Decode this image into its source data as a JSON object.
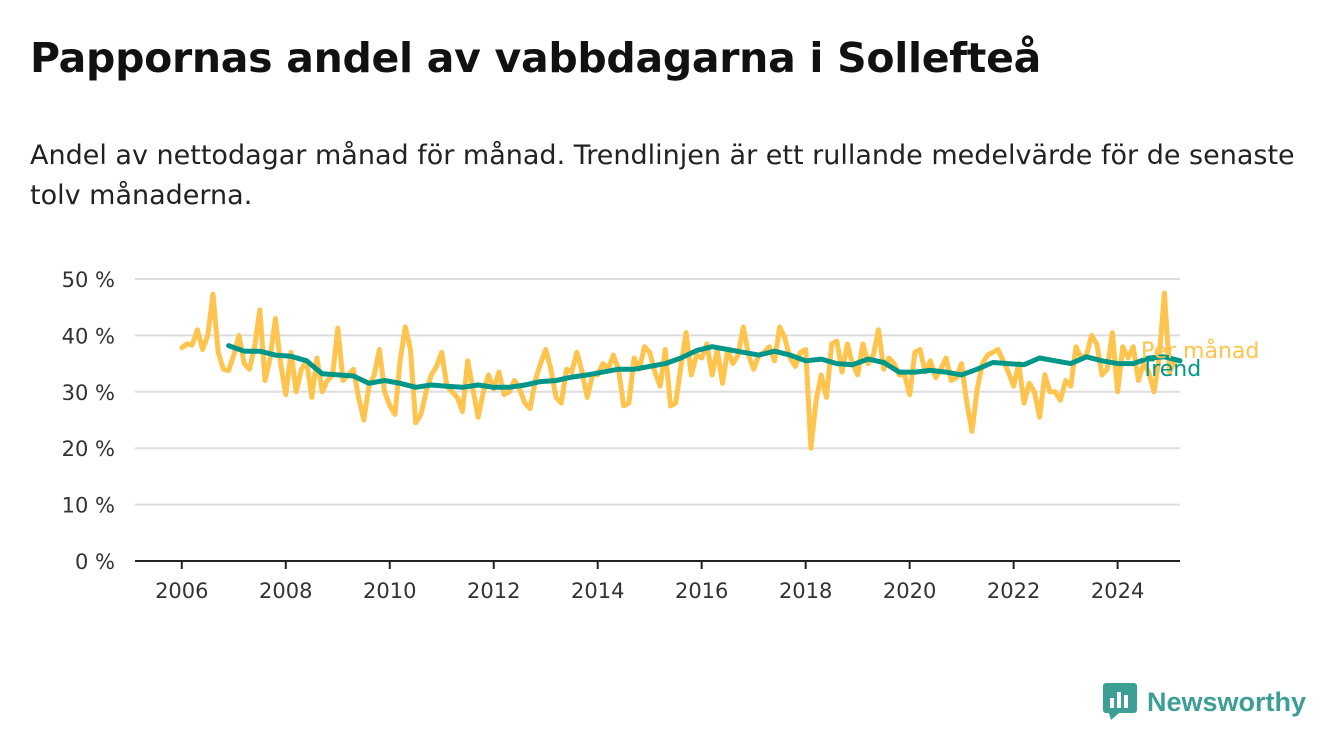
{
  "header": {
    "title": "Pappornas andel av vabbdagarna i Sollefteå",
    "subtitle": "Andel av nettodagar månad för månad. Trendlinjen är ett rullande medelvärde för de senaste tolv månaderna."
  },
  "brand": {
    "name": "Newsworthy",
    "icon": "newsworthy-logo-icon"
  },
  "colors": {
    "per_month": "#ffc44d",
    "trend": "#009688",
    "grid": "#dddddd",
    "axis": "#222222",
    "brand": "#3d9e96"
  },
  "chart_data": {
    "type": "line",
    "title": "Pappornas andel av vabbdagarna i Sollefteå",
    "ylim": [
      0,
      50
    ],
    "y_ticks": [
      0,
      10,
      20,
      30,
      40,
      50
    ],
    "y_tick_labels": [
      "0 %",
      "10 %",
      "20 %",
      "30 %",
      "40 %",
      "50 %"
    ],
    "x_ticks": [
      2006,
      2008,
      2010,
      2012,
      2014,
      2016,
      2018,
      2020,
      2022,
      2024
    ],
    "x_tick_labels": [
      "2006",
      "2008",
      "2010",
      "2012",
      "2014",
      "2016",
      "2018",
      "2020",
      "2022",
      "2024"
    ],
    "xlim": [
      2005.1,
      2025.2
    ],
    "grid": true,
    "legend": "direct labels at line ends (right)",
    "series": [
      {
        "name": "Per månad",
        "points": [
          [
            2006.0,
            37.8
          ],
          [
            2006.1,
            38.5
          ],
          [
            2006.2,
            38.3
          ],
          [
            2006.3,
            41.0
          ],
          [
            2006.4,
            37.5
          ],
          [
            2006.5,
            40.0
          ],
          [
            2006.6,
            47.3
          ],
          [
            2006.7,
            37.0
          ],
          [
            2006.8,
            34.0
          ],
          [
            2006.9,
            33.8
          ],
          [
            2007.0,
            36.5
          ],
          [
            2007.1,
            40.0
          ],
          [
            2007.2,
            35.0
          ],
          [
            2007.3,
            34.0
          ],
          [
            2007.4,
            38.0
          ],
          [
            2007.5,
            44.5
          ],
          [
            2007.6,
            32.0
          ],
          [
            2007.7,
            36.0
          ],
          [
            2007.8,
            43.0
          ],
          [
            2007.9,
            35.0
          ],
          [
            2008.0,
            29.5
          ],
          [
            2008.1,
            37.0
          ],
          [
            2008.2,
            30.0
          ],
          [
            2008.3,
            34.0
          ],
          [
            2008.4,
            35.5
          ],
          [
            2008.5,
            29.0
          ],
          [
            2008.6,
            36.0
          ],
          [
            2008.7,
            30.0
          ],
          [
            2008.8,
            32.0
          ],
          [
            2008.9,
            33.0
          ],
          [
            2009.0,
            41.3
          ],
          [
            2009.1,
            32.0
          ],
          [
            2009.2,
            33.0
          ],
          [
            2009.3,
            34.0
          ],
          [
            2009.4,
            29.0
          ],
          [
            2009.5,
            25.0
          ],
          [
            2009.6,
            31.0
          ],
          [
            2009.7,
            33.0
          ],
          [
            2009.8,
            37.5
          ],
          [
            2009.9,
            30.0
          ],
          [
            2010.0,
            27.5
          ],
          [
            2010.1,
            26.0
          ],
          [
            2010.2,
            35.5
          ],
          [
            2010.3,
            41.5
          ],
          [
            2010.4,
            37.5
          ],
          [
            2010.5,
            24.5
          ],
          [
            2010.6,
            26.0
          ],
          [
            2010.7,
            30.0
          ],
          [
            2010.8,
            33.0
          ],
          [
            2010.9,
            34.5
          ],
          [
            2011.0,
            37.0
          ],
          [
            2011.1,
            31.0
          ],
          [
            2011.2,
            30.0
          ],
          [
            2011.3,
            29.0
          ],
          [
            2011.4,
            26.5
          ],
          [
            2011.5,
            35.5
          ],
          [
            2011.6,
            30.5
          ],
          [
            2011.7,
            25.5
          ],
          [
            2011.8,
            30.0
          ],
          [
            2011.9,
            33.0
          ],
          [
            2012.0,
            30.5
          ],
          [
            2012.1,
            33.5
          ],
          [
            2012.2,
            29.5
          ],
          [
            2012.3,
            30.0
          ],
          [
            2012.4,
            32.0
          ],
          [
            2012.5,
            30.5
          ],
          [
            2012.6,
            28.0
          ],
          [
            2012.7,
            27.0
          ],
          [
            2012.8,
            32.0
          ],
          [
            2012.9,
            35.0
          ],
          [
            2013.0,
            37.5
          ],
          [
            2013.1,
            34.0
          ],
          [
            2013.2,
            29.0
          ],
          [
            2013.3,
            28.0
          ],
          [
            2013.4,
            34.0
          ],
          [
            2013.5,
            33.5
          ],
          [
            2013.6,
            37.0
          ],
          [
            2013.7,
            33.5
          ],
          [
            2013.8,
            29.0
          ],
          [
            2013.9,
            33.0
          ],
          [
            2014.0,
            33.0
          ],
          [
            2014.1,
            35.0
          ],
          [
            2014.2,
            34.0
          ],
          [
            2014.3,
            36.5
          ],
          [
            2014.4,
            34.0
          ],
          [
            2014.5,
            27.5
          ],
          [
            2014.6,
            28.0
          ],
          [
            2014.7,
            36.0
          ],
          [
            2014.8,
            34.0
          ],
          [
            2014.9,
            38.0
          ],
          [
            2015.0,
            37.0
          ],
          [
            2015.1,
            33.5
          ],
          [
            2015.2,
            31.0
          ],
          [
            2015.3,
            37.5
          ],
          [
            2015.4,
            27.5
          ],
          [
            2015.5,
            28.0
          ],
          [
            2015.6,
            34.5
          ],
          [
            2015.7,
            40.5
          ],
          [
            2015.8,
            33.0
          ],
          [
            2015.9,
            36.5
          ],
          [
            2016.0,
            36.0
          ],
          [
            2016.1,
            38.5
          ],
          [
            2016.2,
            33.0
          ],
          [
            2016.3,
            37.5
          ],
          [
            2016.4,
            31.5
          ],
          [
            2016.5,
            37.5
          ],
          [
            2016.6,
            35.0
          ],
          [
            2016.7,
            36.5
          ],
          [
            2016.8,
            41.5
          ],
          [
            2016.9,
            36.5
          ],
          [
            2017.0,
            34.0
          ],
          [
            2017.1,
            36.5
          ],
          [
            2017.2,
            37.0
          ],
          [
            2017.3,
            38.0
          ],
          [
            2017.4,
            35.5
          ],
          [
            2017.5,
            41.5
          ],
          [
            2017.6,
            39.5
          ],
          [
            2017.7,
            36.0
          ],
          [
            2017.8,
            34.5
          ],
          [
            2017.9,
            37.0
          ],
          [
            2018.0,
            37.5
          ],
          [
            2018.1,
            20.0
          ],
          [
            2018.2,
            28.5
          ],
          [
            2018.3,
            33.0
          ],
          [
            2018.4,
            29.0
          ],
          [
            2018.5,
            38.5
          ],
          [
            2018.6,
            39.0
          ],
          [
            2018.7,
            33.5
          ],
          [
            2018.8,
            38.5
          ],
          [
            2018.9,
            35.0
          ],
          [
            2019.0,
            33.0
          ],
          [
            2019.1,
            38.5
          ],
          [
            2019.2,
            35.0
          ],
          [
            2019.3,
            36.5
          ],
          [
            2019.4,
            41.0
          ],
          [
            2019.5,
            34.0
          ],
          [
            2019.6,
            36.0
          ],
          [
            2019.7,
            35.0
          ],
          [
            2019.8,
            33.0
          ],
          [
            2019.9,
            33.0
          ],
          [
            2020.0,
            29.5
          ],
          [
            2020.1,
            37.0
          ],
          [
            2020.2,
            37.5
          ],
          [
            2020.3,
            33.5
          ],
          [
            2020.4,
            35.5
          ],
          [
            2020.5,
            32.5
          ],
          [
            2020.6,
            34.0
          ],
          [
            2020.7,
            36.0
          ],
          [
            2020.8,
            32.0
          ],
          [
            2020.9,
            32.5
          ],
          [
            2021.0,
            35.0
          ],
          [
            2021.1,
            28.0
          ],
          [
            2021.2,
            23.0
          ],
          [
            2021.3,
            30.5
          ],
          [
            2021.4,
            35.0
          ],
          [
            2021.5,
            36.5
          ],
          [
            2021.6,
            37.0
          ],
          [
            2021.7,
            37.5
          ],
          [
            2021.8,
            35.5
          ],
          [
            2021.9,
            33.5
          ],
          [
            2022.0,
            31.0
          ],
          [
            2022.1,
            35.0
          ],
          [
            2022.2,
            28.0
          ],
          [
            2022.3,
            31.5
          ],
          [
            2022.4,
            30.0
          ],
          [
            2022.5,
            25.5
          ],
          [
            2022.6,
            33.0
          ],
          [
            2022.7,
            30.0
          ],
          [
            2022.8,
            30.0
          ],
          [
            2022.9,
            28.5
          ],
          [
            2023.0,
            32.0
          ],
          [
            2023.1,
            31.0
          ],
          [
            2023.2,
            38.0
          ],
          [
            2023.3,
            36.0
          ],
          [
            2023.4,
            36.5
          ],
          [
            2023.5,
            40.0
          ],
          [
            2023.6,
            38.5
          ],
          [
            2023.7,
            33.0
          ],
          [
            2023.8,
            34.0
          ],
          [
            2023.9,
            40.5
          ],
          [
            2024.0,
            30.0
          ],
          [
            2024.1,
            38.0
          ],
          [
            2024.2,
            36.0
          ],
          [
            2024.3,
            38.0
          ],
          [
            2024.4,
            32.0
          ],
          [
            2024.5,
            35.0
          ],
          [
            2024.6,
            33.5
          ],
          [
            2024.7,
            30.0
          ],
          [
            2024.8,
            36.0
          ],
          [
            2024.9,
            47.5
          ],
          [
            2025.0,
            33.5
          ],
          [
            2025.1,
            35.5
          ]
        ]
      },
      {
        "name": "Trend",
        "points": [
          [
            2006.9,
            38.2
          ],
          [
            2007.2,
            37.2
          ],
          [
            2007.5,
            37.2
          ],
          [
            2007.8,
            36.5
          ],
          [
            2008.1,
            36.3
          ],
          [
            2008.4,
            35.5
          ],
          [
            2008.7,
            33.2
          ],
          [
            2009.0,
            33.0
          ],
          [
            2009.3,
            32.8
          ],
          [
            2009.6,
            31.5
          ],
          [
            2009.9,
            32.0
          ],
          [
            2010.2,
            31.5
          ],
          [
            2010.5,
            30.8
          ],
          [
            2010.8,
            31.2
          ],
          [
            2011.1,
            31.0
          ],
          [
            2011.4,
            30.8
          ],
          [
            2011.7,
            31.2
          ],
          [
            2012.0,
            30.8
          ],
          [
            2012.3,
            30.8
          ],
          [
            2012.6,
            31.2
          ],
          [
            2012.9,
            31.8
          ],
          [
            2013.2,
            32.0
          ],
          [
            2013.5,
            32.6
          ],
          [
            2013.8,
            33.0
          ],
          [
            2014.1,
            33.5
          ],
          [
            2014.4,
            34.0
          ],
          [
            2014.7,
            34.0
          ],
          [
            2015.0,
            34.5
          ],
          [
            2015.3,
            35.0
          ],
          [
            2015.6,
            36.0
          ],
          [
            2015.9,
            37.3
          ],
          [
            2016.2,
            38.0
          ],
          [
            2016.5,
            37.5
          ],
          [
            2016.8,
            37.0
          ],
          [
            2017.1,
            36.5
          ],
          [
            2017.4,
            37.2
          ],
          [
            2017.7,
            36.5
          ],
          [
            2018.0,
            35.5
          ],
          [
            2018.3,
            35.8
          ],
          [
            2018.6,
            35.0
          ],
          [
            2018.9,
            34.8
          ],
          [
            2019.2,
            35.8
          ],
          [
            2019.5,
            35.2
          ],
          [
            2019.8,
            33.5
          ],
          [
            2020.1,
            33.5
          ],
          [
            2020.4,
            33.8
          ],
          [
            2020.7,
            33.5
          ],
          [
            2021.0,
            33.0
          ],
          [
            2021.3,
            34.0
          ],
          [
            2021.6,
            35.2
          ],
          [
            2021.9,
            35.0
          ],
          [
            2022.2,
            34.8
          ],
          [
            2022.5,
            36.0
          ],
          [
            2022.8,
            35.5
          ],
          [
            2023.1,
            35.0
          ],
          [
            2023.4,
            36.2
          ],
          [
            2023.7,
            35.5
          ],
          [
            2024.0,
            35.0
          ],
          [
            2024.3,
            35.0
          ],
          [
            2024.6,
            36.0
          ],
          [
            2024.9,
            36.2
          ],
          [
            2025.2,
            35.5
          ]
        ]
      }
    ]
  }
}
